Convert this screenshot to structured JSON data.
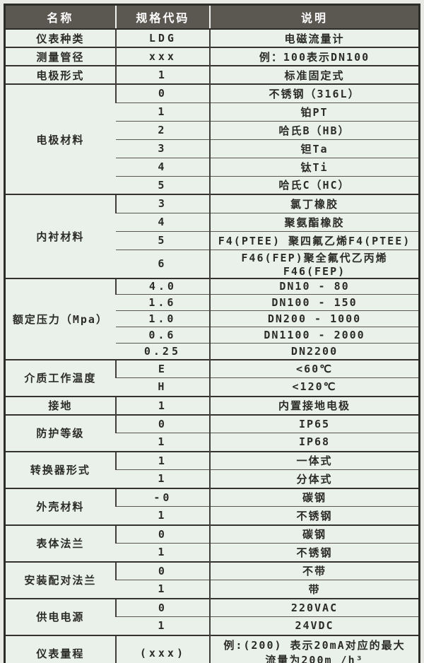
{
  "colors": {
    "header_bg": "#5b5751",
    "header_text": "#ffffff",
    "cell_bg": "#eaf1eb",
    "grid_border": "#34322e",
    "page_margin": "#e9e9e6"
  },
  "table": {
    "columns": [
      "名称",
      "规格代码",
      "说明"
    ],
    "groups": [
      {
        "name": "仪表种类",
        "rows": [
          {
            "code": "LDG",
            "desc": "电磁流量计"
          }
        ]
      },
      {
        "name": "测量管径",
        "rows": [
          {
            "code": "xxx",
            "desc": "例：100表示DN100"
          }
        ]
      },
      {
        "name": "电极形式",
        "rows": [
          {
            "code": "1",
            "desc": "标准固定式"
          }
        ]
      },
      {
        "name": "电极材料",
        "rows": [
          {
            "code": "0",
            "desc": "不锈钢（316L）"
          },
          {
            "code": "1",
            "desc": "铂PT"
          },
          {
            "code": "2",
            "desc": "哈氏B（HB）"
          },
          {
            "code": "3",
            "desc": "钽Ta"
          },
          {
            "code": "4",
            "desc": "钛Ti"
          },
          {
            "code": "5",
            "desc": "哈氏C（HC）"
          }
        ]
      },
      {
        "name": "内衬材料",
        "rows": [
          {
            "code": "3",
            "desc": "氯丁橡胶"
          },
          {
            "code": "4",
            "desc": "聚氨酯橡胶"
          },
          {
            "code": "5",
            "desc": "F4(PTEE) 聚四氟乙烯F4(PTEE)"
          },
          {
            "code": "6",
            "desc": "F46(FEP)聚全氟代乙丙烯F46(FEP)"
          }
        ]
      },
      {
        "name": "额定压力（Mpa）",
        "row_size": "short",
        "rows": [
          {
            "code": "4.0",
            "desc": "DN10 - 80"
          },
          {
            "code": "1.6",
            "desc": "DN100 - 150"
          },
          {
            "code": "1.0",
            "desc": "DN200 - 1000"
          },
          {
            "code": "0.6",
            "desc": "DN1100 - 2000"
          },
          {
            "code": "0.25",
            "desc": "DN2200"
          }
        ]
      },
      {
        "name": "介质工作温度",
        "rows": [
          {
            "code": "E",
            "desc": "<60℃"
          },
          {
            "code": "H",
            "desc": "<120℃"
          }
        ]
      },
      {
        "name": "接地",
        "rows": [
          {
            "code": "1",
            "desc": "内置接地电极"
          }
        ]
      },
      {
        "name": "防护等级",
        "rows": [
          {
            "code": "0",
            "desc": "IP65"
          },
          {
            "code": "1",
            "desc": "IP68"
          }
        ]
      },
      {
        "name": "转换器形式",
        "rows": [
          {
            "code": "1",
            "desc": "一体式"
          },
          {
            "code": "1",
            "desc": "分体式"
          }
        ]
      },
      {
        "name": "外壳材料",
        "rows": [
          {
            "code": "-0",
            "desc": "碳钢"
          },
          {
            "code": "1",
            "desc": "不锈钢"
          }
        ]
      },
      {
        "name": "表体法兰",
        "rows": [
          {
            "code": "0",
            "desc": "碳钢"
          },
          {
            "code": "1",
            "desc": "不锈钢"
          }
        ]
      },
      {
        "name": "安装配对法兰",
        "rows": [
          {
            "code": "0",
            "desc": "不带"
          },
          {
            "code": "1",
            "desc": "带"
          }
        ]
      },
      {
        "name": "供电电源",
        "rows": [
          {
            "code": "0",
            "desc": "220VAC"
          },
          {
            "code": "1",
            "desc": "24VDC"
          }
        ]
      },
      {
        "name": "仪表量程",
        "rows": [
          {
            "code": "(xxx)",
            "tall": true,
            "desc_lines": [
              "例:(200) 表示20mA对应的最大",
              "流量为200m /h³"
            ]
          }
        ]
      }
    ]
  }
}
